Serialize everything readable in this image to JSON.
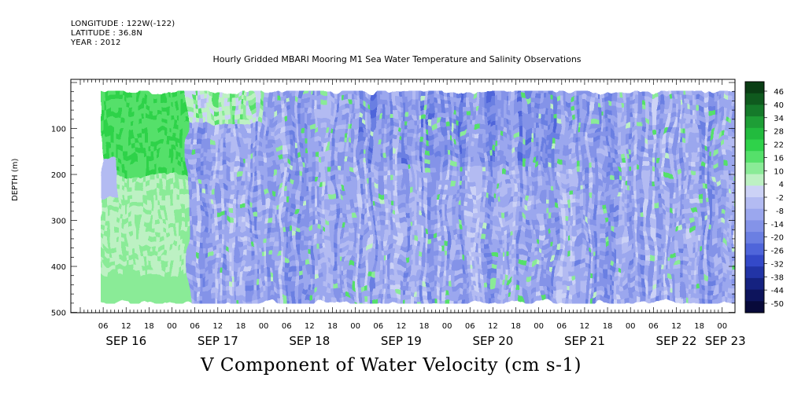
{
  "header": {
    "longitude": "LONGITUDE : 122W(-122)",
    "latitude": "LATITUDE : 36.8N",
    "year": "YEAR : 2012"
  },
  "chart_data": {
    "type": "heatmap",
    "title": "Hourly Gridded MBARI Mooring M1 Sea Water Temperature and Salinity Observations",
    "subtitle": "V Component of Water Velocity (cm s-1)",
    "ylabel": "DEPTH (m)",
    "y_axis": {
      "ylim": [
        500,
        0
      ],
      "inverted": true,
      "ticks": [
        100,
        200,
        300,
        400,
        500
      ],
      "tick_labels": [
        "100",
        "200",
        "300",
        "400",
        "500"
      ]
    },
    "x_axis": {
      "range_hours": [
        0,
        168
      ],
      "hour_tick_labels": [
        "06",
        "12",
        "18",
        "00",
        "06",
        "12",
        "18",
        "00",
        "06",
        "12",
        "18",
        "00",
        "06",
        "12",
        "18",
        "00",
        "06",
        "12",
        "18",
        "00",
        "06",
        "12",
        "18",
        "00",
        "06",
        "12",
        "18",
        "00"
      ],
      "day_labels": [
        "SEP 16",
        "SEP 17",
        "SEP 18",
        "SEP 19",
        "SEP 20",
        "SEP 21",
        "SEP 22",
        "SEP 23"
      ]
    },
    "colorbar": {
      "labels": [
        "46",
        "40",
        "34",
        "28",
        "22",
        "16",
        "10",
        "4",
        "-2",
        "-8",
        "-14",
        "-20",
        "-26",
        "-32",
        "-38",
        "-44",
        "-50"
      ],
      "colors": [
        "#0a3d14",
        "#0f5a1e",
        "#157a2a",
        "#1e9e36",
        "#22bb3e",
        "#2fd24a",
        "#55e06a",
        "#8aeb97",
        "#bdf1c3",
        "#ccd2f6",
        "#b3bbf2",
        "#9ba7ee",
        "#8493e8",
        "#6b7fe2",
        "#4f65da",
        "#3449c8",
        "#2234a6",
        "#152280",
        "#0d145c",
        "#080a3a"
      ],
      "range": [
        -50,
        46
      ]
    },
    "data_extent": {
      "depth_top_m": 18,
      "depth_bottom_m": 478
    },
    "observed_pattern": "Positive (green, ~10-22) V velocity over upper ~200 m on Sep 16, weak positive below; from ~Sep 17 06h onward mostly negative (blue, about -5 to -20) with intermittent green (positive) patches through Sep 23."
  }
}
